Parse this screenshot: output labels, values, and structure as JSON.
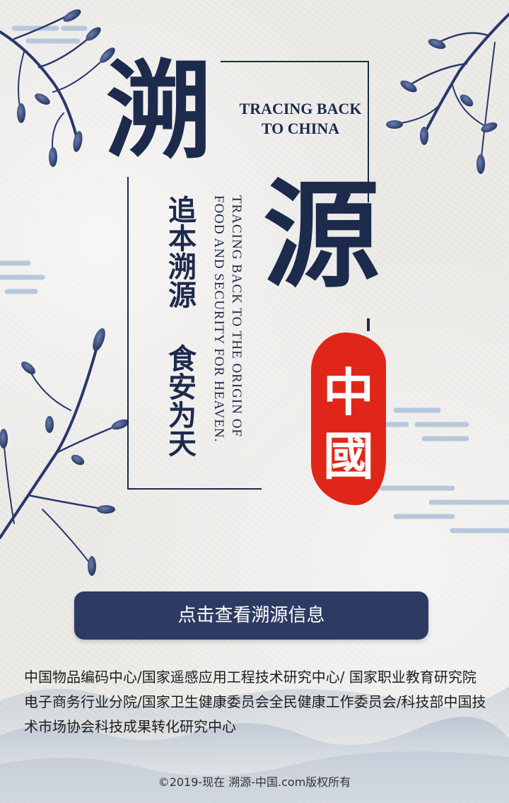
{
  "poster": {
    "char1": "溯",
    "char2": "源",
    "en_title": "TRACING BACK TO CHINA",
    "v_phrase1": "追本溯源",
    "v_phrase2": "食安为天",
    "v_en_line1": "TRACING BACK TO THE ORIGIN OF",
    "v_en_line2": "FOOD AND SECURITY FOR HEAVEN.",
    "seal_text": "中國"
  },
  "cta": {
    "label": "点击查看溯源信息"
  },
  "footer": {
    "organizations": "中国物品编码中心/国家遥感应用工程技术研究中心/ 国家职业教育研究院电子商务行业分院/国家卫生健康委员会全民健康工作委员会/科技部中国技术市场协会科技成果转化研究中心",
    "copyright": "©2019-现在 溯源-中国.com版权所有"
  },
  "colors": {
    "navy": "#1c2a4c",
    "button": "#2d3a62",
    "seal_red": "#e02619",
    "cloud_blue": "#b7c8dc"
  },
  "icons": [
    "branch-illustration",
    "cloud-motif",
    "mountain-wash"
  ]
}
